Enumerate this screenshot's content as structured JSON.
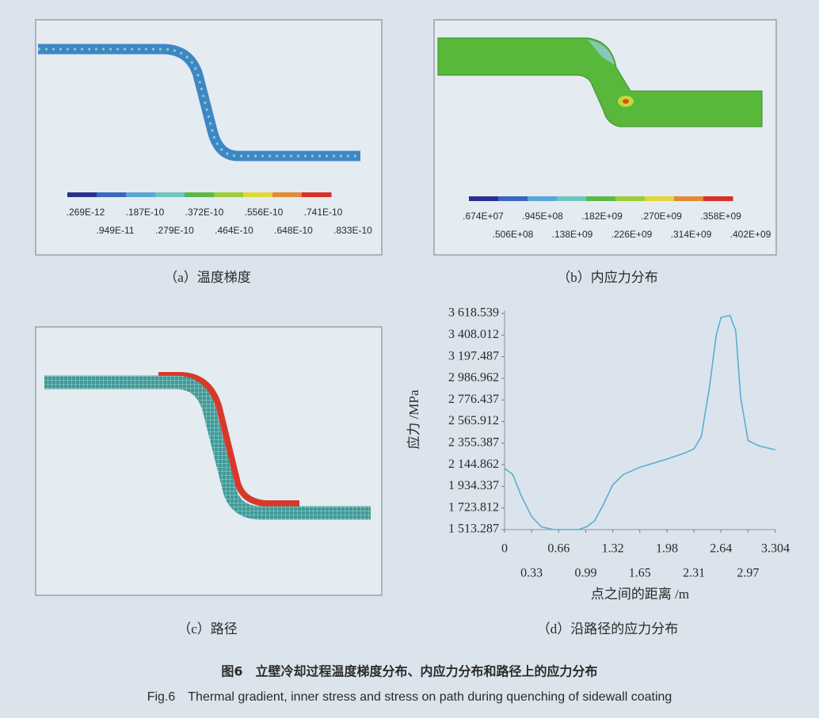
{
  "panels": [
    {
      "caption": "（a）温度梯度",
      "colorbar_labels": [
        ".269E-12",
        ".949E-11",
        ".187E-10",
        ".279E-10",
        ".372E-10",
        ".464E-10",
        ".556E-10",
        ".648E-10",
        ".741E-10",
        ".833E-10"
      ]
    },
    {
      "caption": "（b）内应力分布",
      "colorbar_labels": [
        ".674E+07",
        ".506E+08",
        ".945E+08",
        ".138E+09",
        ".182E+09",
        ".226E+09",
        ".270E+09",
        ".314E+09",
        ".358E+09",
        ".402E+09"
      ]
    },
    {
      "caption": "（c）路径"
    }
  ],
  "chart_data": {
    "type": "line",
    "caption": "（d）沿路径的应力分布",
    "x_label": "点之间的距离 /m",
    "y_label": "应力 /MPa",
    "x": [
      0,
      0.1,
      0.2,
      0.33,
      0.45,
      0.6,
      0.7,
      0.9,
      1.0,
      1.1,
      1.2,
      1.32,
      1.45,
      1.65,
      1.98,
      2.2,
      2.31,
      2.4,
      2.5,
      2.58,
      2.64,
      2.75,
      2.82,
      2.88,
      2.97,
      3.1,
      3.304
    ],
    "values": [
      2110,
      2050,
      1850,
      1640,
      1540,
      1513.287,
      1513.287,
      1513.287,
      1540,
      1600,
      1750,
      1950,
      2050,
      2120,
      2200,
      2260,
      2300,
      2420,
      2900,
      3400,
      3580,
      3600,
      3450,
      2800,
      2380,
      2330,
      2290
    ],
    "color": "#5aaed0",
    "xlim": [
      0,
      3.304
    ],
    "ylim": [
      1513.287,
      3618.539
    ],
    "xticks": [
      0,
      0.33,
      0.66,
      0.99,
      1.32,
      1.65,
      1.98,
      2.31,
      2.64,
      2.97,
      3.304
    ],
    "yticks": [
      {
        "value": 1513.287,
        "label": "1 513.287"
      },
      {
        "value": 1723.812,
        "label": "1 723.812"
      },
      {
        "value": 1934.337,
        "label": "1 934.337"
      },
      {
        "value": 2144.862,
        "label": "2 144.862"
      },
      {
        "value": 2355.387,
        "label": "2 355.387"
      },
      {
        "value": 2565.912,
        "label": "2 565.912"
      },
      {
        "value": 2776.437,
        "label": "2 776.437"
      },
      {
        "value": 2986.962,
        "label": "2 986.962"
      },
      {
        "value": 3197.487,
        "label": "3 197.487"
      },
      {
        "value": 3408.012,
        "label": "3 408.012"
      },
      {
        "value": 3618.539,
        "label": "3 618.539"
      }
    ]
  },
  "figure_caption": {
    "zh": "图6　立壁冷却过程温度梯度分布、内应力分布和路径上的应力分布",
    "en": "Fig.6　Thermal gradient, inner stress and stress on path during quenching of sidewall coating"
  }
}
